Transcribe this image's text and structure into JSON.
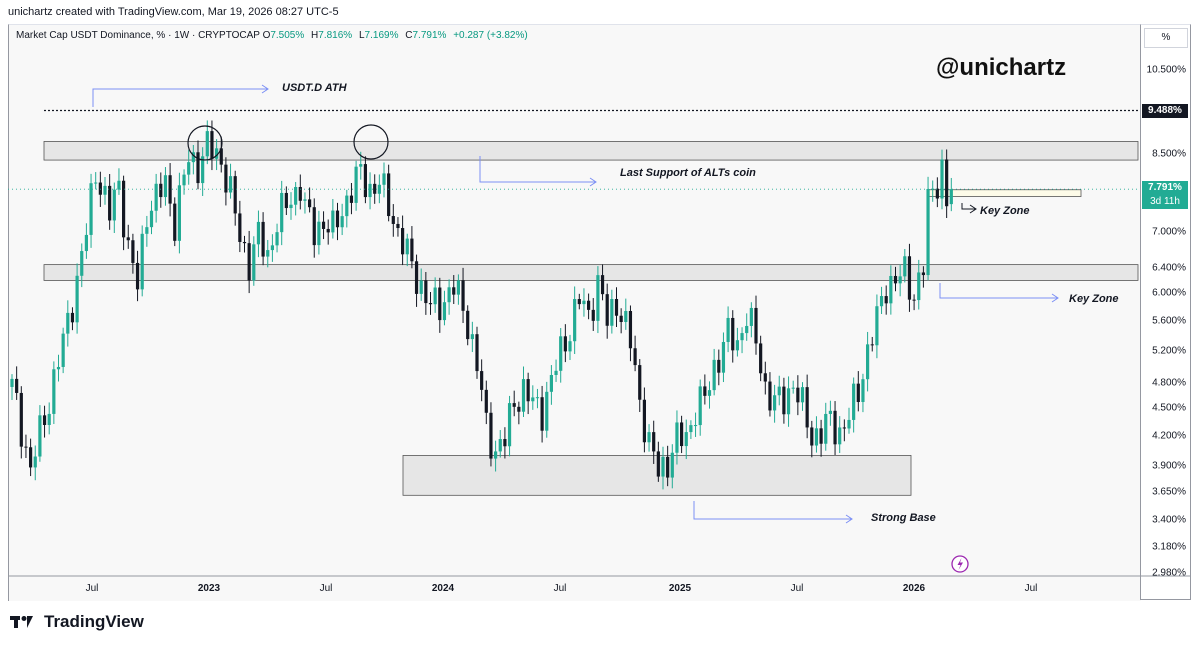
{
  "header": {
    "credit": "unichartz created with TradingView.com, Mar 19, 2026 08:27 UTC-5"
  },
  "legend": {
    "symbol": "Market Cap USDT Dominance, % · 1W · CRYPTOCAP",
    "open_k": "O",
    "open": "7.505%",
    "high_k": "H",
    "high": "7.816%",
    "low_k": "L",
    "low": "7.169%",
    "close_k": "C",
    "close": "7.791%",
    "change": "+0.287 (+3.82%)"
  },
  "watermark": "@unichartz",
  "annotations": {
    "ath": "USDT.D ATH",
    "last_support": "Last Support of ALTs coin",
    "key_zone_1": "Key Zone",
    "key_zone_2": "Key Zone",
    "strong_base": "Strong Base"
  },
  "price_axis": {
    "unit_button": "%",
    "ath_label": "9.488%",
    "current_label": "7.791%",
    "countdown": "3d 11h"
  },
  "footer": {
    "brand": "TradingView"
  },
  "colors": {
    "up": "#22ab94",
    "down": "#131722",
    "accent_line": "#7b8ff5",
    "zone_fill": "#e6e6e6",
    "zone_border": "#555555"
  },
  "chart_data": {
    "type": "candlestick",
    "title": "Market Cap USDT Dominance, % · 1W · CRYPTOCAP",
    "timeframe": "1W",
    "y_scale": "log",
    "ylim": [
      2.98,
      11.6
    ],
    "y_ticks": [
      "10.500%",
      "8.500%",
      "7.000%",
      "6.400%",
      "6.000%",
      "5.600%",
      "5.200%",
      "4.800%",
      "4.500%",
      "4.200%",
      "3.900%",
      "3.650%",
      "3.400%",
      "3.180%",
      "2.980%"
    ],
    "x_ticks": [
      {
        "label": "Jul",
        "year": false
      },
      {
        "label": "2023",
        "year": true
      },
      {
        "label": "Jul",
        "year": false
      },
      {
        "label": "2024",
        "year": true
      },
      {
        "label": "Jul",
        "year": false
      },
      {
        "label": "2025",
        "year": true
      },
      {
        "label": "Jul",
        "year": false
      },
      {
        "label": "2026",
        "year": true
      },
      {
        "label": "Jul",
        "year": false
      }
    ],
    "anchors": [
      [
        0,
        4.75
      ],
      [
        4,
        3.85
      ],
      [
        8,
        4.6
      ],
      [
        11,
        5.3
      ],
      [
        14,
        6.2
      ],
      [
        16,
        7.0
      ],
      [
        18,
        8.2
      ],
      [
        21,
        7.3
      ],
      [
        23,
        7.9
      ],
      [
        25,
        6.7
      ],
      [
        27,
        6.1
      ],
      [
        29,
        7.4
      ],
      [
        31,
        7.6
      ],
      [
        33,
        7.9
      ],
      [
        35,
        7.2
      ],
      [
        38,
        8.4
      ],
      [
        40,
        8.3
      ],
      [
        42,
        8.65
      ],
      [
        45,
        8.4
      ],
      [
        47,
        7.7
      ],
      [
        49,
        6.9
      ],
      [
        51,
        6.5
      ],
      [
        53,
        6.9
      ],
      [
        55,
        6.6
      ],
      [
        57,
        7.2
      ],
      [
        60,
        7.6
      ],
      [
        62,
        7.9
      ],
      [
        63,
        7.4
      ],
      [
        65,
        7.0
      ],
      [
        67,
        7.2
      ],
      [
        69,
        7.0
      ],
      [
        71,
        7.4
      ],
      [
        73,
        7.8
      ],
      [
        75,
        8.1
      ],
      [
        77,
        7.8
      ],
      [
        79,
        7.9
      ],
      [
        81,
        7.5
      ],
      [
        83,
        7.0
      ],
      [
        85,
        6.6
      ],
      [
        88,
        6.1
      ],
      [
        90,
        5.8
      ],
      [
        92,
        5.85
      ],
      [
        95,
        6.1
      ],
      [
        98,
        5.6
      ],
      [
        100,
        5.0
      ],
      [
        102,
        4.3
      ],
      [
        104,
        4.05
      ],
      [
        106,
        4.15
      ],
      [
        108,
        4.6
      ],
      [
        110,
        4.7
      ],
      [
        112,
        4.55
      ],
      [
        114,
        4.5
      ],
      [
        116,
        4.8
      ],
      [
        118,
        5.2
      ],
      [
        120,
        5.5
      ],
      [
        122,
        5.9
      ],
      [
        124,
        5.7
      ],
      [
        126,
        6.15
      ],
      [
        128,
        5.6
      ],
      [
        130,
        5.9
      ],
      [
        133,
        5.3
      ],
      [
        135,
        4.6
      ],
      [
        137,
        4.1
      ],
      [
        139,
        3.85
      ],
      [
        141,
        3.95
      ],
      [
        143,
        4.15
      ],
      [
        145,
        4.2
      ],
      [
        147,
        4.5
      ],
      [
        149,
        4.6
      ],
      [
        151,
        5.0
      ],
      [
        154,
        5.4
      ],
      [
        156,
        5.3
      ],
      [
        158,
        5.7
      ],
      [
        160,
        5.3
      ],
      [
        162,
        4.75
      ],
      [
        164,
        4.55
      ],
      [
        166,
        4.6
      ],
      [
        168,
        4.8
      ],
      [
        170,
        4.5
      ],
      [
        172,
        4.2
      ],
      [
        174,
        4.25
      ],
      [
        176,
        4.35
      ],
      [
        178,
        4.25
      ],
      [
        180,
        4.4
      ],
      [
        182,
        4.7
      ],
      [
        184,
        5.2
      ],
      [
        186,
        5.6
      ],
      [
        188,
        6.15
      ],
      [
        190,
        6.2
      ],
      [
        192,
        6.3
      ],
      [
        194,
        6.0
      ],
      [
        195,
        6.2
      ],
      [
        196,
        6.4
      ],
      [
        197,
        7.5
      ],
      [
        198,
        7.8
      ],
      [
        199,
        8.0
      ],
      [
        200,
        8.2
      ],
      [
        201,
        7.5
      ],
      [
        202,
        7.79
      ]
    ],
    "zones": [
      {
        "name": "Last Support of ALTs coin",
        "low": 8.38,
        "high": 8.78
      },
      {
        "name": "Key Zone",
        "low": 6.2,
        "high": 6.45
      },
      {
        "name": "Strong Base",
        "low": 3.62,
        "high": 4.0
      },
      {
        "name": "Key Zone",
        "low": 7.65,
        "high": 7.78
      }
    ],
    "reference_lines": [
      {
        "name": "USDT.D ATH",
        "value": 9.488
      },
      {
        "name": "current",
        "value": 7.791
      }
    ]
  }
}
